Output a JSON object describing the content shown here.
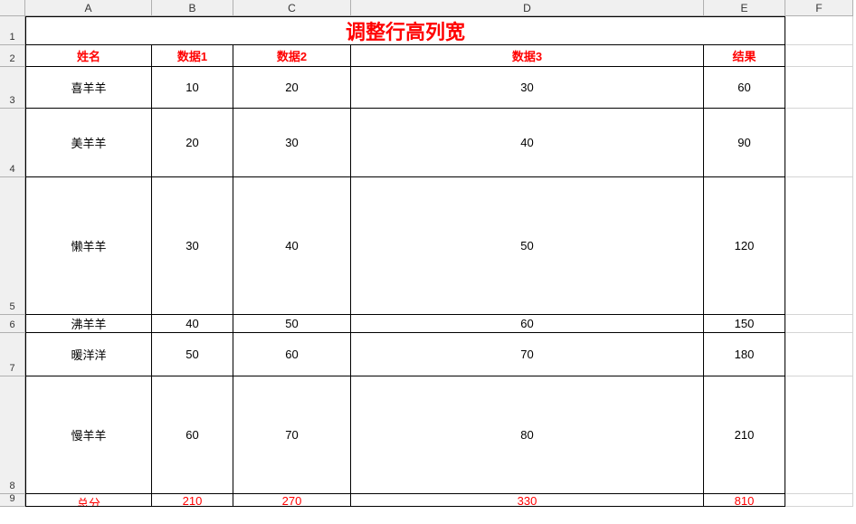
{
  "columns": {
    "letters": [
      "A",
      "B",
      "C",
      "D",
      "E",
      "F"
    ],
    "widths": [
      140,
      90,
      130,
      390,
      90,
      75
    ]
  },
  "rows": {
    "numbers": [
      "1",
      "2",
      "3",
      "4",
      "5",
      "6",
      "7",
      "8",
      "9"
    ],
    "heights": [
      32,
      24,
      46,
      76,
      152,
      20,
      48,
      130,
      14
    ]
  },
  "title": "调整行高列宽",
  "headers": [
    "姓名",
    "数据1",
    "数据2",
    "数据3",
    "结果"
  ],
  "data_rows": [
    {
      "name": "喜羊羊",
      "d1": "10",
      "d2": "20",
      "d3": "30",
      "res": "60"
    },
    {
      "name": "美羊羊",
      "d1": "20",
      "d2": "30",
      "d3": "40",
      "res": "90"
    },
    {
      "name": "懒羊羊",
      "d1": "30",
      "d2": "40",
      "d3": "50",
      "res": "120"
    },
    {
      "name": "沸羊羊",
      "d1": "40",
      "d2": "50",
      "d3": "60",
      "res": "150"
    },
    {
      "name": "暖洋洋",
      "d1": "50",
      "d2": "60",
      "d3": "70",
      "res": "180"
    },
    {
      "name": "慢羊羊",
      "d1": "60",
      "d2": "70",
      "d3": "80",
      "res": "210"
    }
  ],
  "total_row": {
    "name": "总分",
    "d1": "210",
    "d2": "270",
    "d3": "330",
    "res": "810"
  },
  "colors": {
    "header_bg": "#f0f0f0",
    "grid_line": "#d4d4d4",
    "header_line": "#b0b0b0",
    "red": "#ff0000",
    "black": "#000000"
  }
}
